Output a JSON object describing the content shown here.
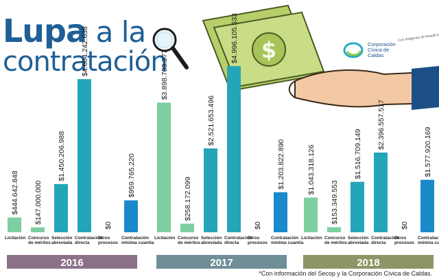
{
  "header": {
    "title_line1_word1": "Lupa",
    "title_line1_word2": "a la",
    "title_line2": "contratación"
  },
  "brand": {
    "name_line1": "Corporación",
    "name_line2": "Cívica de",
    "name_line3": "Caldas",
    "credit": "Con imágenes de freepik.es"
  },
  "footnote": "*Con información del Secop y la Corporación Cívica de Caldas.",
  "colors": {
    "title": "#1f5f96",
    "bar_green": "#7dcea0",
    "bar_teal": "#25a5b8",
    "bar_blue": "#1a8acb",
    "year_2016": "#8a7188",
    "year_2017": "#6f8e97",
    "year_2018": "#8d9466"
  },
  "chart_data": {
    "type": "bar",
    "title": "",
    "categories": [
      "Licitación",
      "Concurso de méritos",
      "Selección abreviada",
      "Contratación directa",
      "Otros procesos",
      "Contratación mínima cuantía"
    ],
    "series": [
      {
        "name": "2016",
        "values": [
          444642848,
          147000000,
          1450206988,
          4604242638,
          0,
          959765220
        ],
        "labels": [
          "$444.642.848",
          "$147.000.000",
          "$1.450.206.988",
          "$4.604.242.638",
          "$0",
          "$959.765.220"
        ]
      },
      {
        "name": "2017",
        "values": [
          3898703377,
          258172099,
          2521653496,
          4996105533,
          0,
          1203822890
        ],
        "labels": [
          "$3.898.703.377",
          "$258.172.099",
          "$2.521.653.496",
          "$4.996.105.533",
          "$0",
          "$1.203.822.890"
        ]
      },
      {
        "name": "2018",
        "values": [
          1043318126,
          153349553,
          1516709149,
          2396557517,
          0,
          1577920169
        ],
        "labels": [
          "$1.043.318.126",
          "$153.349.553",
          "$1.516.709.149",
          "$2.396.557.517",
          "$0",
          "$1.577.920.169"
        ]
      }
    ],
    "xlabel": "",
    "ylabel": "",
    "grid": false,
    "legend": "none"
  }
}
